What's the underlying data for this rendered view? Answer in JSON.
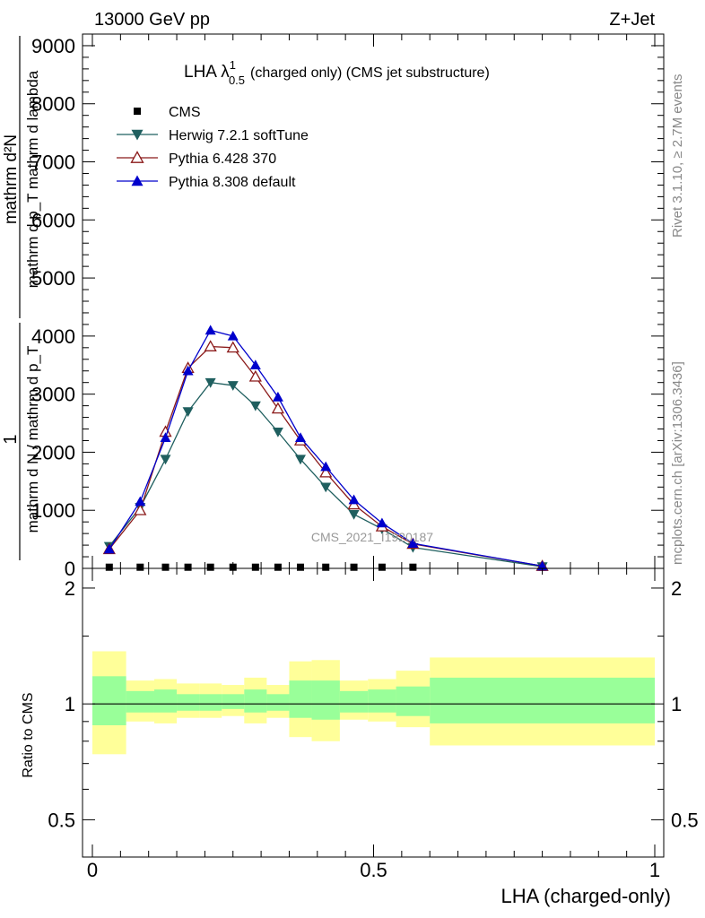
{
  "header": {
    "left": "13000 GeV pp",
    "right": "Z+Jet"
  },
  "side_text": {
    "rivet": "Rivet 3.1.10, ≥ 2.7M events",
    "mcplots": "mcplots.cern.ch [arXiv:1306.3436]"
  },
  "watermark": "CMS_2021_I1920187",
  "chart_data": [
    {
      "type": "line",
      "title": "LHA λ",
      "title_sup": "1",
      "title_sub": "0.5",
      "title_rest": "(charged only) (CMS jet substructure)",
      "ylabel_num": "mathrm d²N",
      "ylabel_den": "mathrm d p_T mathrm d lambda",
      "ylabel_prefix_num": "1",
      "ylabel_prefix_den": "mathrm d N / mathrm d p_T",
      "xlim": [
        0,
        1
      ],
      "ylim": [
        0,
        9200
      ],
      "y_ticks": [
        {
          "value": 0,
          "label": "0"
        },
        {
          "value": 1000,
          "label": "1000"
        },
        {
          "value": 2000,
          "label": "2000"
        },
        {
          "value": 3000,
          "label": "3000"
        },
        {
          "value": 4000,
          "label": "4000"
        },
        {
          "value": 5000,
          "label": "5000"
        },
        {
          "value": 6000,
          "label": "6000"
        },
        {
          "value": 7000,
          "label": "7000"
        },
        {
          "value": 8000,
          "label": "8000"
        },
        {
          "value": 9000,
          "label": "9000"
        }
      ],
      "legend_position": "top-left",
      "x": [
        0.03,
        0.085,
        0.13,
        0.17,
        0.21,
        0.25,
        0.29,
        0.33,
        0.37,
        0.415,
        0.465,
        0.515,
        0.57,
        0.8
      ],
      "series": [
        {
          "name": "CMS",
          "color": "#000000",
          "marker": "square",
          "values": [
            20,
            20,
            20,
            20,
            20,
            20,
            20,
            20,
            20,
            20,
            20,
            20,
            20,
            20
          ]
        },
        {
          "name": "Herwig 7.2.1 softTune",
          "color": "#1f5f5f",
          "marker": "triangle-down",
          "values": [
            380,
            1050,
            1880,
            2700,
            3200,
            3150,
            2800,
            2350,
            1880,
            1400,
            930,
            680,
            360,
            30
          ]
        },
        {
          "name": "Pythia 6.428 370",
          "color": "#8b1a1a",
          "marker": "triangle-up-open",
          "values": [
            330,
            1000,
            2350,
            3450,
            3820,
            3800,
            3300,
            2750,
            2200,
            1650,
            1100,
            720,
            420,
            40
          ]
        },
        {
          "name": "Pythia 8.308 default",
          "color": "#0000cc",
          "marker": "triangle-up",
          "values": [
            330,
            1150,
            2250,
            3400,
            4100,
            4000,
            3500,
            2950,
            2250,
            1750,
            1180,
            780,
            430,
            40
          ]
        }
      ]
    },
    {
      "type": "area",
      "ylabel": "Ratio to CMS",
      "xlabel": "LHA (charged-only)",
      "xlim": [
        0,
        1
      ],
      "ylim": [
        0.4,
        2.25
      ],
      "log_y": true,
      "x_ticks": [
        {
          "value": 0,
          "label": "0"
        },
        {
          "value": 0.5,
          "label": "0.5"
        },
        {
          "value": 1,
          "label": "1"
        }
      ],
      "y_ticks": [
        {
          "value": 0.5,
          "label": "0.5"
        },
        {
          "value": 1,
          "label": "1"
        },
        {
          "value": 2,
          "label": "2"
        }
      ],
      "band_colors": {
        "outer": "#ffff99",
        "inner": "#99ff99",
        "line": "#000000"
      },
      "bins": [
        {
          "x0": 0.0,
          "x1": 0.06,
          "outer": [
            0.74,
            1.37
          ],
          "inner": [
            0.88,
            1.18
          ]
        },
        {
          "x0": 0.06,
          "x1": 0.11,
          "outer": [
            0.9,
            1.15
          ],
          "inner": [
            0.95,
            1.08
          ]
        },
        {
          "x0": 0.11,
          "x1": 0.15,
          "outer": [
            0.89,
            1.16
          ],
          "inner": [
            0.95,
            1.09
          ]
        },
        {
          "x0": 0.15,
          "x1": 0.19,
          "outer": [
            0.92,
            1.13
          ],
          "inner": [
            0.96,
            1.06
          ]
        },
        {
          "x0": 0.19,
          "x1": 0.23,
          "outer": [
            0.92,
            1.13
          ],
          "inner": [
            0.96,
            1.06
          ]
        },
        {
          "x0": 0.23,
          "x1": 0.27,
          "outer": [
            0.93,
            1.12
          ],
          "inner": [
            0.97,
            1.06
          ]
        },
        {
          "x0": 0.27,
          "x1": 0.31,
          "outer": [
            0.89,
            1.17
          ],
          "inner": [
            0.95,
            1.09
          ]
        },
        {
          "x0": 0.31,
          "x1": 0.35,
          "outer": [
            0.92,
            1.12
          ],
          "inner": [
            0.96,
            1.06
          ]
        },
        {
          "x0": 0.35,
          "x1": 0.39,
          "outer": [
            0.82,
            1.29
          ],
          "inner": [
            0.92,
            1.15
          ]
        },
        {
          "x0": 0.39,
          "x1": 0.44,
          "outer": [
            0.8,
            1.3
          ],
          "inner": [
            0.91,
            1.15
          ]
        },
        {
          "x0": 0.44,
          "x1": 0.49,
          "outer": [
            0.91,
            1.15
          ],
          "inner": [
            0.95,
            1.08
          ]
        },
        {
          "x0": 0.49,
          "x1": 0.54,
          "outer": [
            0.9,
            1.16
          ],
          "inner": [
            0.95,
            1.09
          ]
        },
        {
          "x0": 0.54,
          "x1": 0.6,
          "outer": [
            0.87,
            1.22
          ],
          "inner": [
            0.93,
            1.11
          ]
        },
        {
          "x0": 0.6,
          "x1": 1.0,
          "outer": [
            0.78,
            1.32
          ],
          "inner": [
            0.89,
            1.17
          ]
        }
      ]
    }
  ]
}
